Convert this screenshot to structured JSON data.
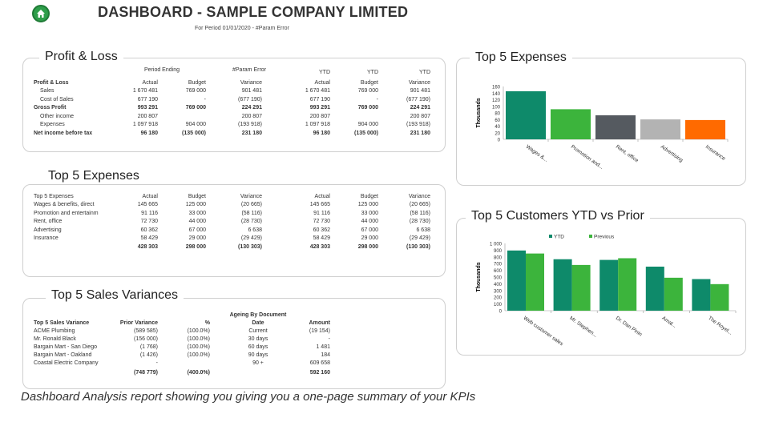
{
  "header": {
    "title": "DASHBOARD - SAMPLE COMPANY LIMITED",
    "subtitle": "For Period 01/01/2020 - #Param Error",
    "home_icon": "home-icon"
  },
  "pnl": {
    "title": "Profit & Loss",
    "group_period": "Period Ending",
    "group_param": "#Param Error",
    "col_labels": [
      "Actual",
      "Budget",
      "Variance",
      "YTD",
      "YTD",
      "YTD"
    ],
    "col_labels2": [
      "",
      "",
      "",
      "Actual",
      "Budget",
      "Variance"
    ],
    "section": "Profit & Loss",
    "rows": [
      {
        "label": "Sales",
        "v": [
          "1 670 481",
          "769 000",
          "901 481",
          "1 670 481",
          "769 000",
          "901 481"
        ]
      },
      {
        "label": "Cost of Sales",
        "v": [
          "677 190",
          "-",
          "(677 190)",
          "677 190",
          "-",
          "(677 190)"
        ]
      },
      {
        "label": "Gross Profit",
        "v": [
          "993 291",
          "769 000",
          "224 291",
          "993 291",
          "769 000",
          "224 291"
        ]
      },
      {
        "label": "Other income",
        "v": [
          "200 807",
          "",
          "200 807",
          "200 807",
          "",
          "200 807"
        ]
      },
      {
        "label": "Expenses",
        "v": [
          "1 097 918",
          "904 000",
          "(193 918)",
          "1 097 918",
          "904 000",
          "(193 918)"
        ]
      },
      {
        "label": "Net income before tax",
        "v": [
          "96 180",
          "(135 000)",
          "231 180",
          "96 180",
          "(135 000)",
          "231 180"
        ]
      }
    ]
  },
  "expenses_table": {
    "title": "Top 5 Expenses",
    "col_labels": [
      "Top 5 Expenses",
      "Actual",
      "Budget",
      "Variance",
      "Actual",
      "Budget",
      "Variance"
    ],
    "rows": [
      {
        "label": "Wages & benefits, direct",
        "v": [
          "145 665",
          "125 000",
          "(20 665)",
          "145 665",
          "125 000",
          "(20 665)"
        ]
      },
      {
        "label": "Promotion and entertainm",
        "v": [
          "91 116",
          "33 000",
          "(58 116)",
          "91 116",
          "33 000",
          "(58 116)"
        ]
      },
      {
        "label": "Rent, office",
        "v": [
          "72 730",
          "44 000",
          "(28 730)",
          "72 730",
          "44 000",
          "(28 730)"
        ]
      },
      {
        "label": "Advertising",
        "v": [
          "60 362",
          "67 000",
          "6 638",
          "60 362",
          "67 000",
          "6 638"
        ]
      },
      {
        "label": "Insurance",
        "v": [
          "58 429",
          "29 000",
          "(29 429)",
          "58 429",
          "29 000",
          "(29 429)"
        ]
      }
    ],
    "totals": [
      "428 303",
      "298 000",
      "(130 303)",
      "428 303",
      "298 000",
      "(130 303)"
    ]
  },
  "sales_variances": {
    "title": "Top 5 Sales Variances",
    "ageing_header": "Ageing By Document",
    "col_labels": [
      "Top 5 Sales Variance",
      "Prior Variance",
      "%",
      "Date",
      "Amount"
    ],
    "rows": [
      {
        "label": "ACME Plumbing",
        "prior": "(589 585)",
        "pct": "(100.0%)",
        "date": "Current",
        "amount": "(19 154)"
      },
      {
        "label": "Mr. Ronald Black",
        "prior": "(156 000)",
        "pct": "(100.0%)",
        "date": "30 days",
        "amount": "-"
      },
      {
        "label": "Bargain Mart - San Diego",
        "prior": "(1 768)",
        "pct": "(100.0%)",
        "date": "60 days",
        "amount": "1 481"
      },
      {
        "label": "Bargain Mart - Oakland",
        "prior": "(1 426)",
        "pct": "(100.0%)",
        "date": "90 days",
        "amount": "184"
      },
      {
        "label": "Coastal Electric Company",
        "prior": "-",
        "pct": "",
        "date": "90 +",
        "amount": "609 658"
      }
    ],
    "totals": {
      "prior": "(748 779)",
      "pct": "(400.0%)",
      "amount": "592 160"
    }
  },
  "chart_expenses": {
    "panel_title": "Top 5 Expenses",
    "chart_data": {
      "type": "bar",
      "ylabel": "Thousands",
      "ylim": [
        0,
        160
      ],
      "yticks": [
        "0",
        "20",
        "40",
        "60",
        "80",
        "100",
        "120",
        "140",
        "160"
      ],
      "categories": [
        "Wages &...",
        "Promotion and...",
        "Rent, office",
        "Advertising",
        "Insurance"
      ],
      "values": [
        145.665,
        91.116,
        72.73,
        60.362,
        58.429
      ],
      "colors": [
        "#0e8a6a",
        "#3cb43c",
        "#555a60",
        "#b3b3b3",
        "#ff6a00"
      ]
    }
  },
  "chart_customers": {
    "panel_title": "Top 5 Customers YTD vs Prior",
    "chart_data": {
      "type": "bar",
      "ylabel": "Thousands",
      "ylim": [
        0,
        1000
      ],
      "yticks": [
        "0",
        "100",
        "200",
        "300",
        "400",
        "500",
        "600",
        "700",
        "800",
        "900",
        "1 000"
      ],
      "categories": [
        "Web customer sales",
        "Mr. Stephen...",
        "Dr. Dan Pinin",
        "Amal...",
        "The Royel..."
      ],
      "series": [
        {
          "name": "YTD",
          "values": [
            895,
            765,
            755,
            655,
            470
          ],
          "color": "#0e8a6a"
        },
        {
          "name": "Previous",
          "values": [
            850,
            680,
            780,
            490,
            395
          ],
          "color": "#3cb43c"
        }
      ]
    }
  },
  "caption": "Dashboard Analysis report showing you giving you a one-page summary of your KPIs"
}
